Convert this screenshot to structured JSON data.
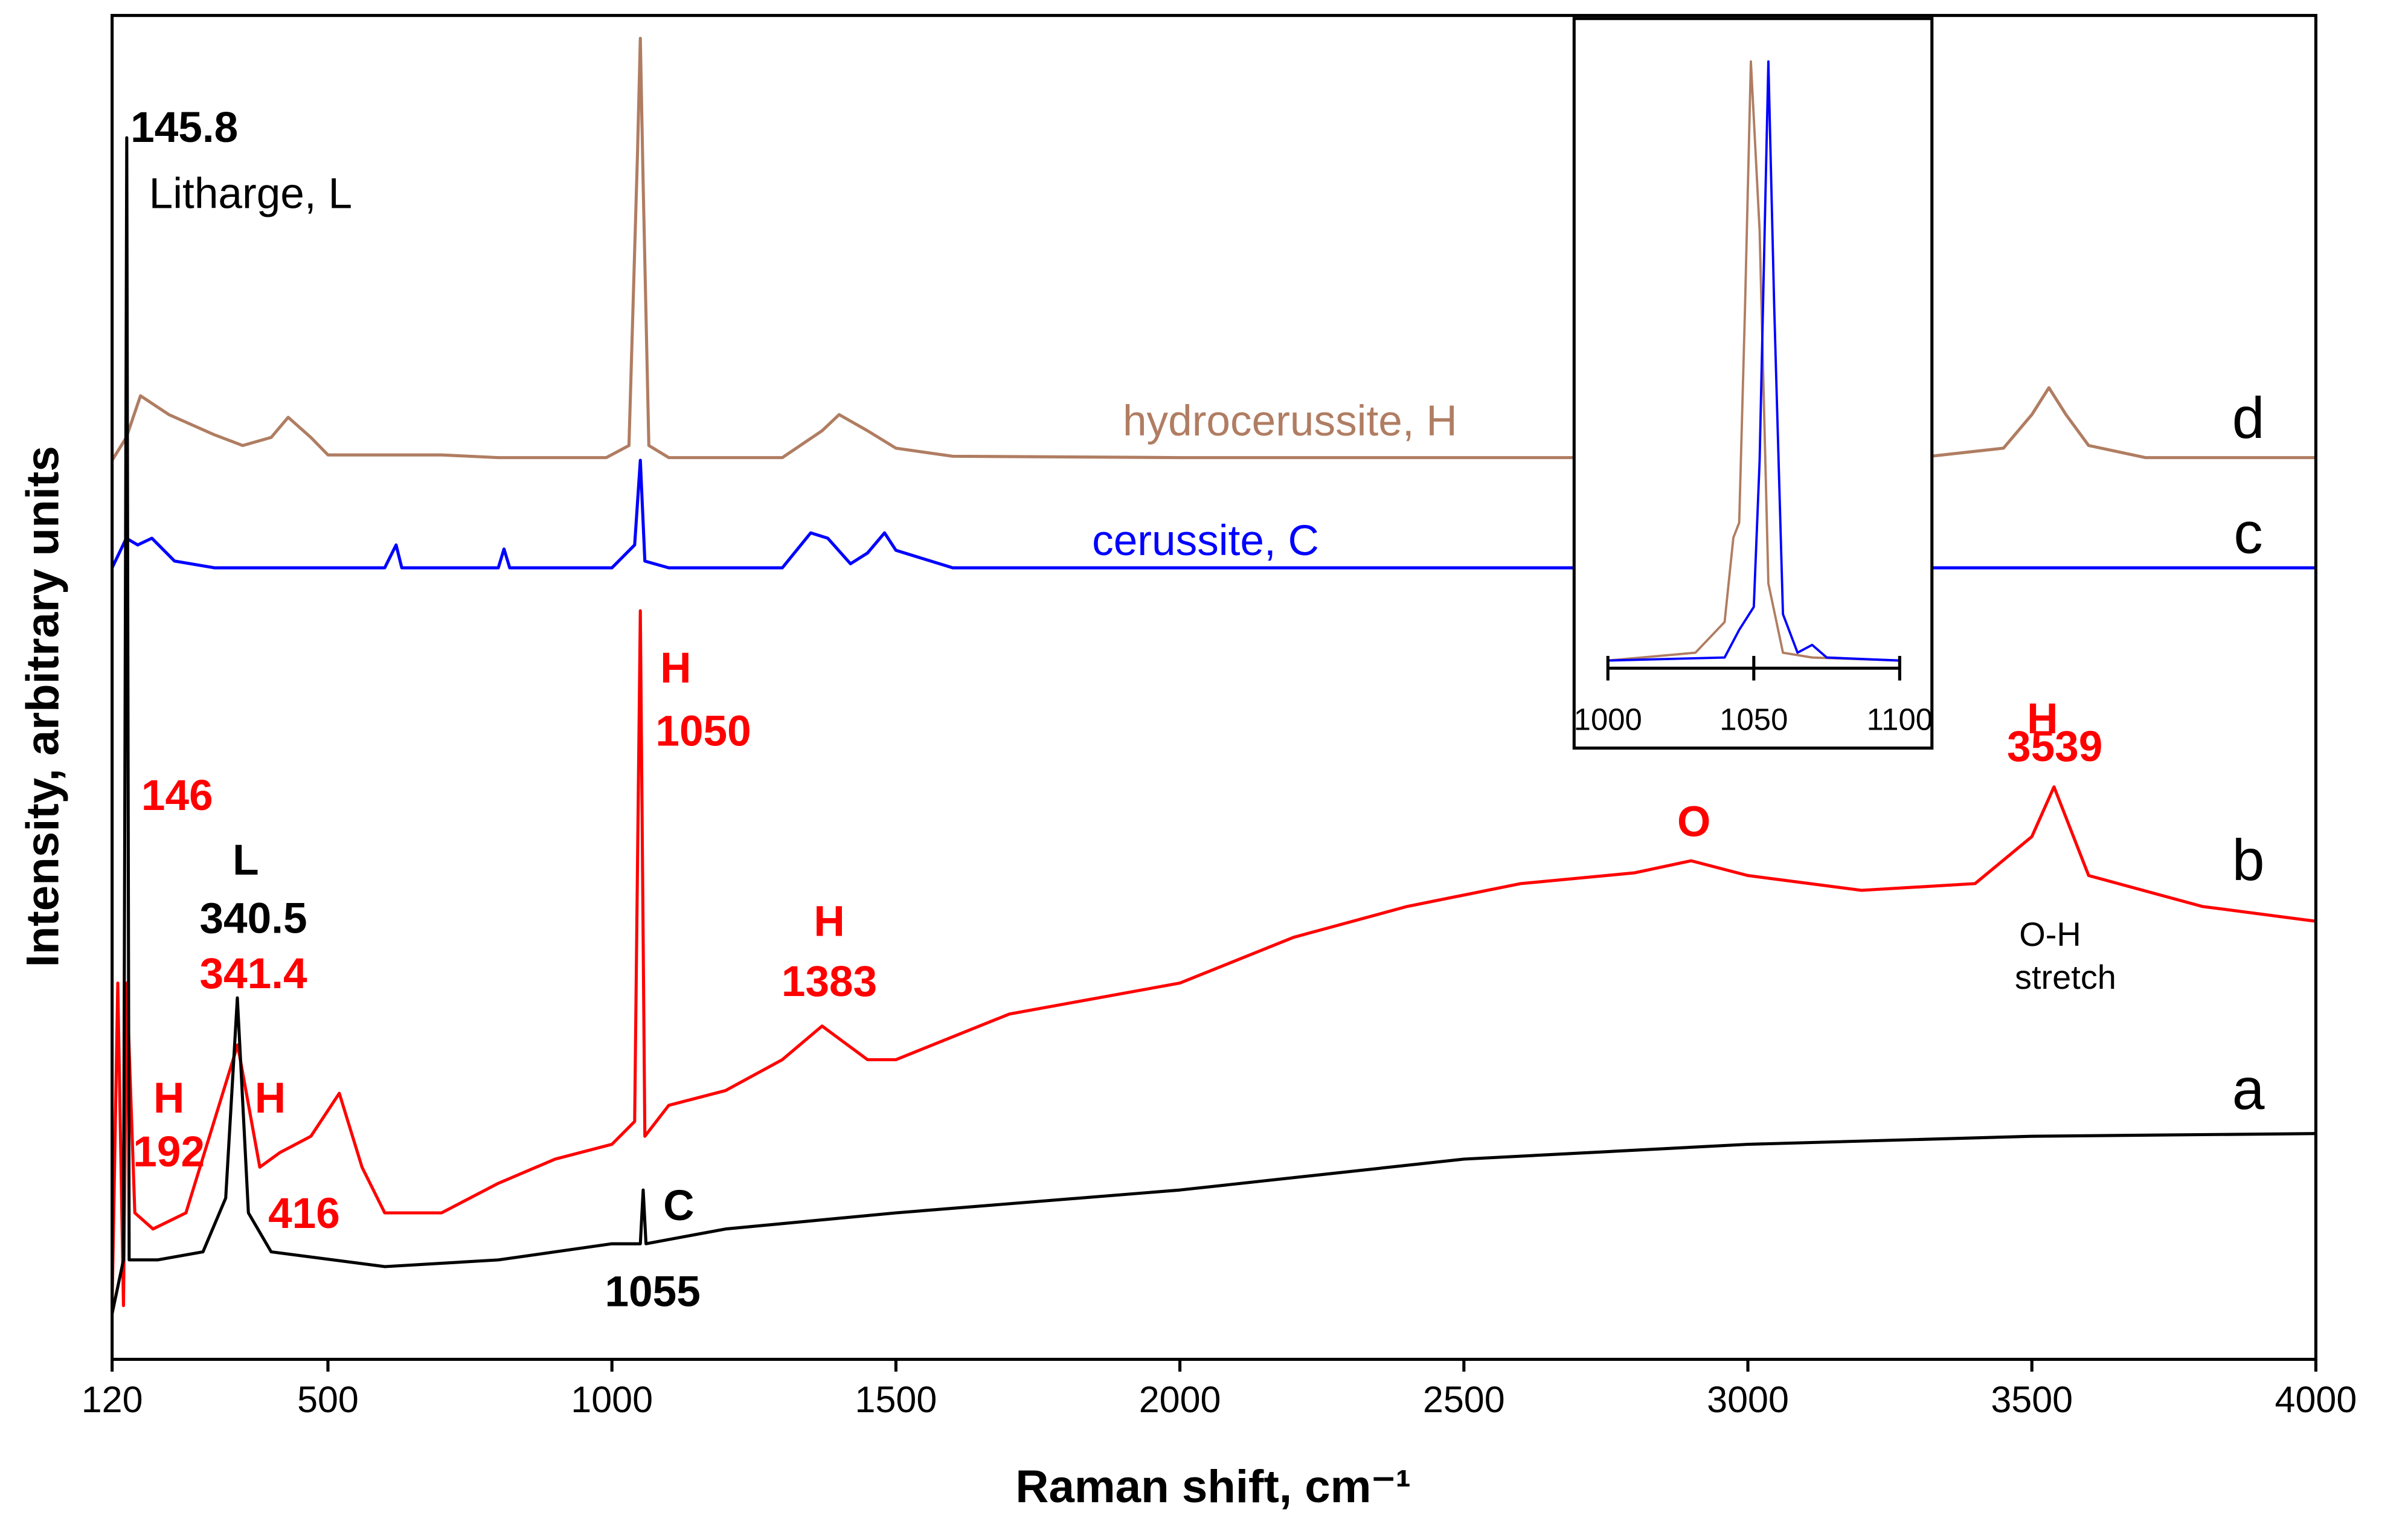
{
  "chart_data": [
    {
      "type": "line",
      "xlabel": "Raman shift, cm⁻¹",
      "ylabel": "Intensity, arbitrary units",
      "xlim": [
        120,
        4000
      ],
      "xticks": [
        120,
        500,
        1000,
        1500,
        2000,
        2500,
        3000,
        3500,
        4000
      ],
      "ylim": [
        0,
        100
      ],
      "series": [
        {
          "name": "d",
          "color": "#b07d62",
          "x": [
            120,
            145,
            170,
            220,
            300,
            350,
            400,
            430,
            470,
            500,
            700,
            800,
            990,
            1030,
            1045,
            1050,
            1055,
            1065,
            1100,
            1300,
            1370,
            1400,
            1450,
            1500,
            1600,
            2000,
            2600,
            3300,
            3450,
            3500,
            3530,
            3560,
            3600,
            3700,
            4000
          ],
          "values": [
            66.9,
            68.6,
            71.7,
            70.3,
            68.8,
            68.0,
            68.6,
            70.1,
            68.6,
            67.3,
            67.3,
            67.1,
            67.1,
            68.0,
            89.7,
            98.3,
            87.4,
            68.0,
            67.1,
            67.1,
            69.1,
            70.3,
            69.1,
            67.8,
            67.2,
            67.1,
            67.1,
            67.1,
            67.8,
            70.3,
            72.3,
            70.3,
            68.0,
            67.1,
            67.1
          ]
        },
        {
          "name": "c",
          "color": "#0000ff",
          "x": [
            120,
            145,
            165,
            190,
            230,
            300,
            600,
            620,
            630,
            800,
            810,
            820,
            1000,
            1040,
            1050,
            1058,
            1100,
            1300,
            1350,
            1380,
            1420,
            1450,
            1480,
            1500,
            1600,
            4000
          ],
          "values": [
            58.9,
            61.1,
            60.6,
            61.1,
            59.4,
            58.9,
            58.9,
            60.6,
            58.9,
            58.9,
            60.3,
            58.9,
            58.9,
            60.6,
            66.9,
            59.4,
            58.9,
            58.9,
            61.5,
            61.1,
            59.2,
            60.0,
            61.5,
            60.2,
            58.9,
            58.9
          ]
        },
        {
          "name": "b",
          "color": "#ff0000",
          "x": [
            120,
            130,
            140,
            146,
            160,
            192,
            250,
            341,
            380,
            416,
            470,
            520,
            560,
            600,
            700,
            800,
            900,
            1000,
            1040,
            1050,
            1058,
            1100,
            1200,
            1300,
            1370,
            1450,
            1500,
            1700,
            2000,
            2200,
            2400,
            2600,
            2800,
            2900,
            3000,
            3200,
            3400,
            3500,
            3539,
            3600,
            3800,
            4000
          ],
          "values": [
            4.0,
            28.0,
            4.0,
            28.0,
            10.9,
            9.7,
            10.9,
            23.4,
            14.3,
            15.4,
            16.6,
            19.8,
            14.3,
            10.9,
            10.9,
            13.1,
            14.9,
            16.0,
            17.7,
            55.7,
            16.6,
            18.9,
            20.0,
            22.3,
            24.8,
            22.3,
            22.3,
            25.7,
            28.0,
            31.4,
            33.7,
            35.4,
            36.2,
            37.1,
            36.0,
            34.9,
            35.4,
            38.9,
            42.6,
            36.0,
            33.7,
            32.6
          ]
        },
        {
          "name": "a",
          "color": "#000000",
          "x": [
            120,
            140,
            145.8,
            150,
            200,
            280,
            320,
            340.5,
            360,
            400,
            600,
            800,
            1000,
            1050,
            1055,
            1060,
            1200,
            1500,
            2000,
            2500,
            3000,
            3500,
            4000
          ],
          "values": [
            3.4,
            7.4,
            90.9,
            7.4,
            7.4,
            8.0,
            12.0,
            26.9,
            10.9,
            8.0,
            6.9,
            7.4,
            8.6,
            8.6,
            12.6,
            8.6,
            9.7,
            10.9,
            12.6,
            14.9,
            16.0,
            16.6,
            16.8
          ]
        }
      ],
      "annotations": [
        {
          "text": "145.8",
          "color": "#000000"
        },
        {
          "text": "Litharge, L",
          "color": "#000000"
        },
        {
          "text": "146",
          "color": "#ff0000"
        },
        {
          "text": "L",
          "color": "#000000"
        },
        {
          "text": "340.5",
          "color": "#000000"
        },
        {
          "text": "341.4",
          "color": "#ff0000"
        },
        {
          "text": "H",
          "color": "#ff0000"
        },
        {
          "text": "192",
          "color": "#ff0000"
        },
        {
          "text": "H",
          "color": "#ff0000"
        },
        {
          "text": "416",
          "color": "#ff0000"
        },
        {
          "text": "H",
          "color": "#ff0000"
        },
        {
          "text": "1050",
          "color": "#ff0000"
        },
        {
          "text": "H",
          "color": "#ff0000"
        },
        {
          "text": "1383",
          "color": "#ff0000"
        },
        {
          "text": "C",
          "color": "#000000"
        },
        {
          "text": "1055",
          "color": "#000000"
        },
        {
          "text": "O",
          "color": "#ff0000"
        },
        {
          "text": "H",
          "color": "#ff0000"
        },
        {
          "text": "3539",
          "color": "#ff0000"
        },
        {
          "text": "O-H",
          "color": "#000000"
        },
        {
          "text": "stretch",
          "color": "#000000"
        },
        {
          "text": "hydrocerussite, H",
          "color": "#b07d62"
        },
        {
          "text": "cerussite, C",
          "color": "#0000ff"
        }
      ]
    },
    {
      "type": "line",
      "xlim": [
        1000,
        1100
      ],
      "xticks": [
        1000,
        1050,
        1100
      ],
      "ylim": [
        0,
        100
      ],
      "series": [
        {
          "color": "#b07d62",
          "x": [
            1000,
            1030,
            1040,
            1043,
            1045,
            1047,
            1049,
            1052,
            1055,
            1060,
            1070,
            1100
          ],
          "values": [
            0,
            1.3,
            6.4,
            20.4,
            22.9,
            58.7,
            99.5,
            71.4,
            12.8,
            1.3,
            0.5,
            0
          ]
        },
        {
          "color": "#0000ff",
          "x": [
            1000,
            1040,
            1045,
            1050,
            1052,
            1055,
            1057,
            1060,
            1065,
            1070,
            1075,
            1100
          ],
          "values": [
            0,
            0.5,
            5.1,
            8.9,
            33.2,
            99.5,
            58.7,
            7.7,
            1.3,
            2.6,
            0.5,
            0
          ]
        }
      ]
    }
  ]
}
